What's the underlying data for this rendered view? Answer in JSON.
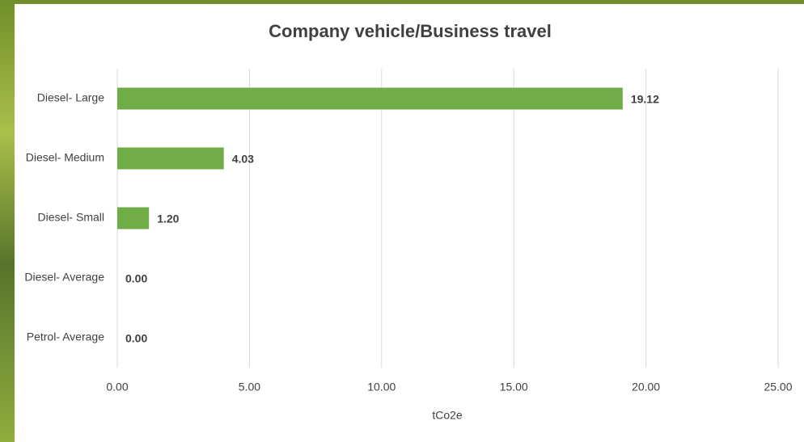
{
  "chart_data": {
    "type": "bar",
    "orientation": "horizontal",
    "title": "Company vehicle/Business travel",
    "x_label": "tCo2e",
    "categories": [
      "Diesel- Large",
      "Diesel- Medium",
      "Diesel- Small",
      "Diesel- Average",
      "Petrol- Average"
    ],
    "values": [
      19.12,
      4.03,
      1.2,
      0,
      0
    ],
    "value_labels": [
      "19.12",
      "4.03",
      "1.20",
      "0.00",
      "0.00"
    ],
    "color": "#70ad47",
    "xlim": [
      0,
      25
    ],
    "xticks": [
      {
        "value": 0,
        "label": "0.00"
      },
      {
        "value": 5,
        "label": "5.00"
      },
      {
        "value": 10,
        "label": "10.00"
      },
      {
        "value": 15,
        "label": "15.00"
      },
      {
        "value": 20,
        "label": "20.00"
      },
      {
        "value": 25,
        "label": "25.00"
      }
    ],
    "grid": true
  }
}
